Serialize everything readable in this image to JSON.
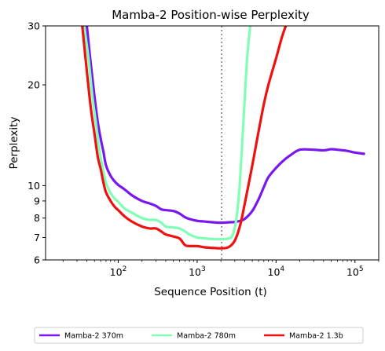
{
  "chart_data": {
    "type": "line",
    "title": "Mamba-2 Position-wise Perplexity",
    "xlabel": "Sequence Position (t)",
    "ylabel": "Perplexity",
    "x_scale": "log",
    "y_scale": "log",
    "xlim": [
      12,
      200000
    ],
    "ylim": [
      6,
      30
    ],
    "x_ticks": [
      {
        "value": 100,
        "base": "10",
        "exp": "2"
      },
      {
        "value": 1000,
        "base": "10",
        "exp": "3"
      },
      {
        "value": 10000,
        "base": "10",
        "exp": "4"
      },
      {
        "value": 100000,
        "base": "10",
        "exp": "5"
      }
    ],
    "y_ticks": [
      {
        "value": 6,
        "label": "6"
      },
      {
        "value": 7,
        "label": "7"
      },
      {
        "value": 8,
        "label": "8"
      },
      {
        "value": 9,
        "label": "9"
      },
      {
        "value": 10,
        "label": "10"
      },
      {
        "value": 20,
        "label": "20"
      },
      {
        "value": 30,
        "label": "30"
      }
    ],
    "vline": {
      "x": 2048,
      "style": "dotted",
      "color": "#777777"
    },
    "legend_placement": "below",
    "series": [
      {
        "name": "Mamba-2 370m",
        "color": "#7a17f0",
        "x": [
          40,
          45,
          50,
          55,
          60,
          65,
          70,
          80,
          90,
          100,
          120,
          150,
          200,
          250,
          300,
          350,
          400,
          500,
          600,
          700,
          800,
          1000,
          1200,
          1500,
          2000,
          2500,
          3000,
          3500,
          4000,
          5000,
          6000,
          7000,
          8000,
          10000,
          12000,
          15000,
          20000,
          30000,
          40000,
          50000,
          60000,
          80000,
          100000,
          130000
        ],
        "y": [
          30,
          23,
          18.5,
          15.5,
          13.8,
          12.6,
          11.5,
          10.7,
          10.3,
          10.05,
          9.75,
          9.35,
          9.0,
          8.85,
          8.7,
          8.5,
          8.45,
          8.4,
          8.25,
          8.05,
          7.95,
          7.85,
          7.82,
          7.78,
          7.75,
          7.77,
          7.79,
          7.85,
          7.95,
          8.4,
          9.1,
          9.9,
          10.6,
          11.3,
          11.8,
          12.3,
          12.8,
          12.8,
          12.75,
          12.85,
          12.8,
          12.7,
          12.55,
          12.45
        ]
      },
      {
        "name": "Mamba-2 780m",
        "color": "#80ffb4",
        "x": [
          37,
          42,
          47,
          52,
          57,
          62,
          70,
          80,
          90,
          100,
          120,
          150,
          200,
          250,
          300,
          350,
          400,
          500,
          600,
          700,
          800,
          1000,
          1200,
          1500,
          2000,
          2500,
          2800,
          3100,
          3400,
          3700,
          4000,
          4300,
          4700
        ],
        "y": [
          30,
          24,
          18.5,
          15.5,
          13.0,
          11.6,
          10.2,
          9.5,
          9.15,
          8.95,
          8.55,
          8.3,
          8.0,
          7.9,
          7.9,
          7.75,
          7.55,
          7.5,
          7.45,
          7.3,
          7.15,
          7.0,
          6.97,
          6.93,
          6.92,
          6.95,
          7.1,
          7.8,
          9.5,
          13,
          18,
          24,
          30
        ]
      },
      {
        "name": "Mamba-2 1.3b",
        "color": "#ee1111",
        "x": [
          35,
          40,
          45,
          50,
          55,
          60,
          65,
          70,
          80,
          90,
          100,
          120,
          150,
          200,
          250,
          300,
          350,
          400,
          500,
          600,
          700,
          800,
          1000,
          1200,
          1500,
          2000,
          2500,
          3000,
          3500,
          4000,
          5000,
          6000,
          7000,
          8000,
          10000,
          12000,
          14000
        ],
        "y": [
          30,
          22,
          17,
          14.3,
          12.2,
          11.2,
          10.2,
          9.55,
          9.0,
          8.65,
          8.45,
          8.1,
          7.8,
          7.55,
          7.45,
          7.45,
          7.3,
          7.15,
          7.05,
          6.95,
          6.65,
          6.6,
          6.6,
          6.55,
          6.52,
          6.5,
          6.55,
          6.85,
          7.6,
          8.8,
          11.5,
          14.5,
          17.5,
          20,
          24,
          28,
          31
        ]
      }
    ]
  }
}
